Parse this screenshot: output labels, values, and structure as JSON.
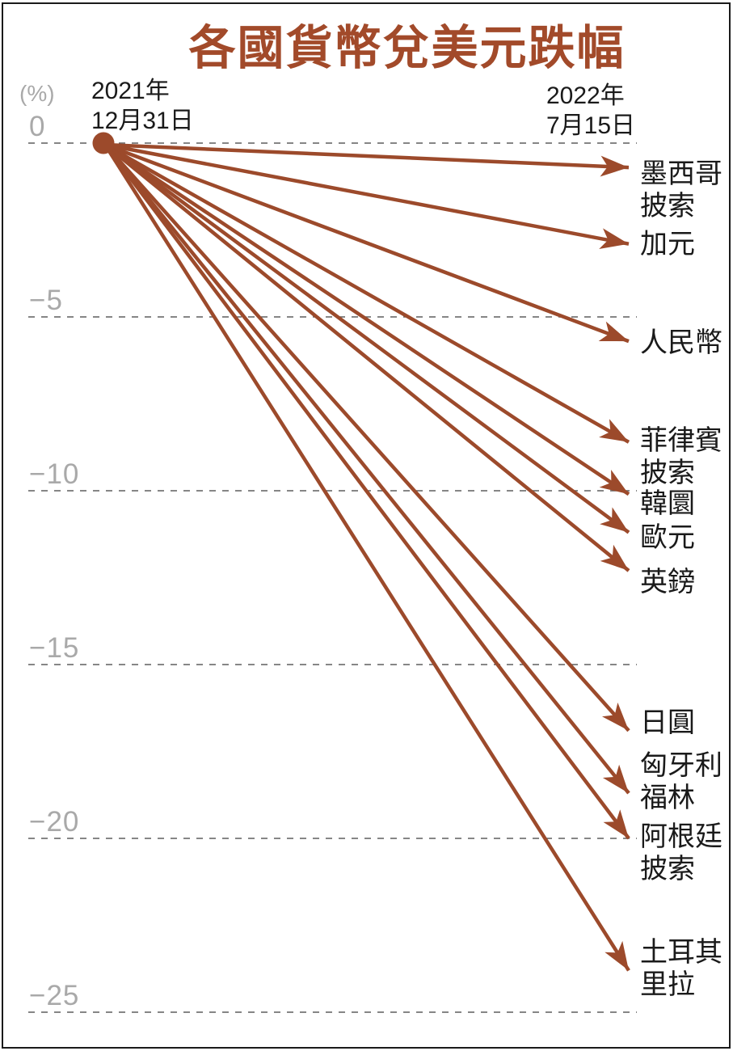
{
  "title": "各國貨幣兌美元跌幅",
  "axis": {
    "unit_label": "(%)",
    "ticks": [
      {
        "label": "0",
        "value": 0
      },
      {
        "label": "−5",
        "value": -5
      },
      {
        "label": "−10",
        "value": -10
      },
      {
        "label": "−15",
        "value": -15
      },
      {
        "label": "−20",
        "value": -20
      },
      {
        "label": "−25",
        "value": -25
      }
    ]
  },
  "start_label": {
    "line1": "2021年",
    "line2": "12月31日"
  },
  "end_label": {
    "line1": "2022年",
    "line2": "7月15日"
  },
  "chart_data": {
    "type": "slope-arrows",
    "title": "各國貨幣兌美元跌幅",
    "unit": "%",
    "x_start_label": "2021年12月31日",
    "x_end_label": "2022年7月15日",
    "ylim": [
      -26.5,
      0.8
    ],
    "yticks": [
      0,
      -5,
      -10,
      -15,
      -20,
      -25
    ],
    "grid": "dashed",
    "series": [
      {
        "id": "mexican-peso",
        "name": "墨西哥披索",
        "name_lines": [
          "墨西哥",
          "披索"
        ],
        "change_pct": -0.7
      },
      {
        "id": "canadian-dollar",
        "name": "加元",
        "name_lines": [
          "加元"
        ],
        "change_pct": -2.9
      },
      {
        "id": "chinese-yuan",
        "name": "人民幣",
        "name_lines": [
          "人民幣"
        ],
        "change_pct": -5.7
      },
      {
        "id": "philippine-peso",
        "name": "菲律賓披索",
        "name_lines": [
          "菲律賓",
          "披索"
        ],
        "change_pct": -8.6
      },
      {
        "id": "south-korean-won",
        "name": "韓圜",
        "name_lines": [
          "韓圜"
        ],
        "change_pct": -10.1
      },
      {
        "id": "euro",
        "name": "歐元",
        "name_lines": [
          "歐元"
        ],
        "change_pct": -11.2
      },
      {
        "id": "british-pound",
        "name": "英鎊",
        "name_lines": [
          "英鎊"
        ],
        "change_pct": -12.3
      },
      {
        "id": "japanese-yen",
        "name": "日圓",
        "name_lines": [
          "日圓"
        ],
        "change_pct": -16.9
      },
      {
        "id": "hungarian-forint",
        "name": "匈牙利福林",
        "name_lines": [
          "匈牙利",
          "福林"
        ],
        "change_pct": -18.7
      },
      {
        "id": "argentine-peso",
        "name": "阿根廷披索",
        "name_lines": [
          "阿根廷",
          "披索"
        ],
        "change_pct": -20.0
      },
      {
        "id": "turkish-lira",
        "name": "土耳其里拉",
        "name_lines": [
          "土耳其",
          "里拉"
        ],
        "change_pct": -23.8
      }
    ]
  },
  "colors": {
    "accent": "#9c4a2b",
    "title": "#a24a2a",
    "tick_label": "#a9a9a9",
    "gridline": "#5f5f5f",
    "text": "#1a1a1a",
    "frame": "#1a1a1a",
    "background": "#ffffff"
  }
}
